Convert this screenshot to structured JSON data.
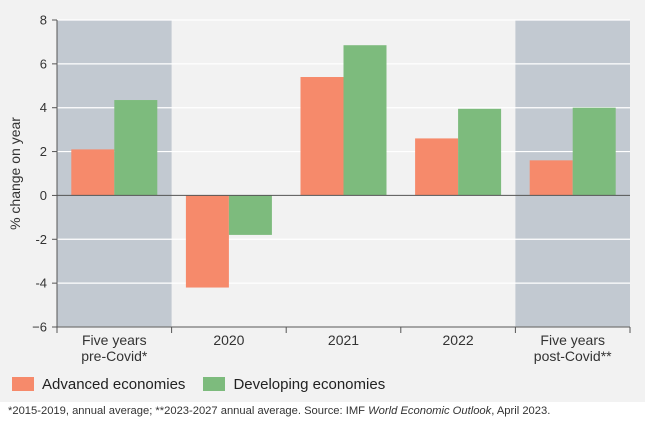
{
  "chart_data": {
    "type": "bar",
    "categories": [
      [
        "Five years",
        "pre-Covid*"
      ],
      [
        "2020"
      ],
      [
        "2021"
      ],
      [
        "2022"
      ],
      [
        "Five years",
        "post-Covid**"
      ]
    ],
    "shaded_categories": [
      0,
      4
    ],
    "series": [
      {
        "name": "Advanced economies",
        "color": "#f68a6b",
        "values": [
          2.1,
          -4.2,
          5.4,
          2.6,
          1.6
        ]
      },
      {
        "name": "Developing economies",
        "color": "#7dbb7d",
        "values": [
          4.35,
          -1.8,
          6.85,
          3.95,
          4.0
        ]
      }
    ],
    "ylabel": "% change on year",
    "ylim": [
      -6,
      8
    ],
    "yticks": [
      8,
      6,
      4,
      2,
      0,
      -2,
      -4,
      -6
    ],
    "ytick_labels": [
      "8",
      "6",
      "4",
      "2",
      "0",
      "-2",
      "-4",
      "−6"
    ],
    "grid": true,
    "legend_position": "bottom-left",
    "colors": {
      "shade": "#c2c9d1",
      "panel": "#f2f2f2",
      "grid": "#ffffff",
      "axis": "#555555"
    }
  },
  "footnote": {
    "before": "*2015-2019, annual average; **2023-2027 annual average. Source: IMF ",
    "italic": "World Economic Outlook",
    "after": ", April 2023."
  }
}
